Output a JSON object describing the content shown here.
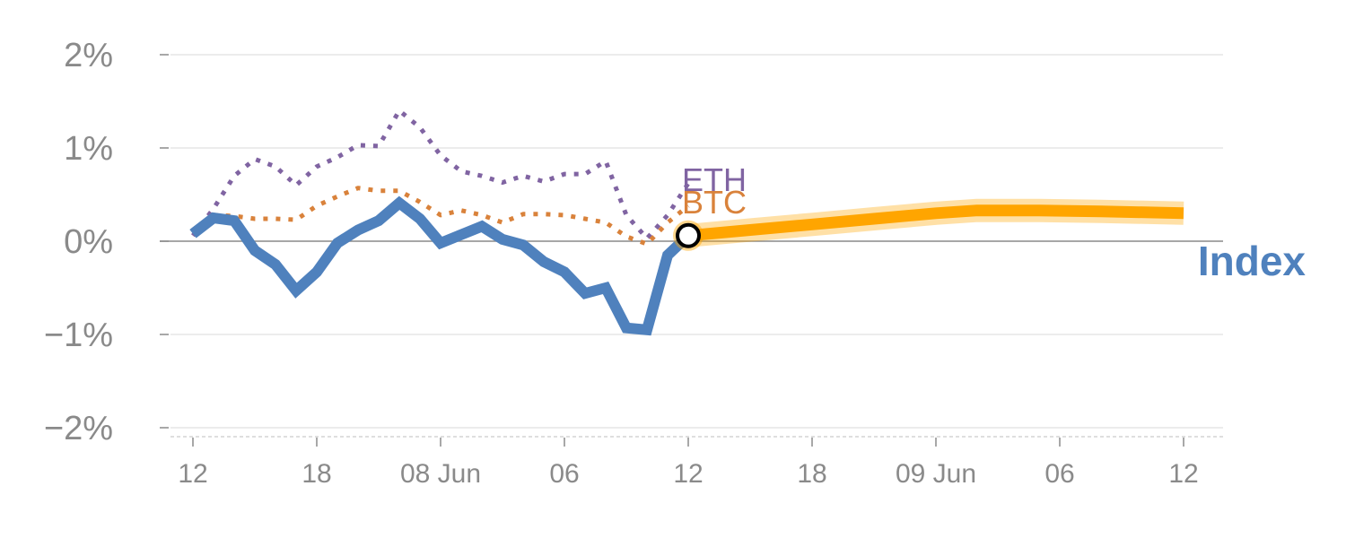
{
  "chart_data": {
    "type": "line",
    "y_unit": "%",
    "ylim": [
      -2,
      2
    ],
    "y_ticks": [
      {
        "value": 2,
        "label": "2%"
      },
      {
        "value": 1,
        "label": "1%"
      },
      {
        "value": 0,
        "label": "0%"
      },
      {
        "value": -1,
        "label": "−1%"
      },
      {
        "value": -2,
        "label": "−2%"
      }
    ],
    "x_ticks": [
      "12",
      "18",
      "08 Jun",
      "06",
      "12",
      "18",
      "09 Jun",
      "06",
      "12"
    ],
    "x_range": [
      0,
      48
    ],
    "grid": true,
    "colors": {
      "index": "#4f81bd",
      "btc": "#d9823b",
      "eth": "#8064a2",
      "projection": "#ffa500",
      "grid": "#e6e6e6",
      "zero": "#8a8a8a",
      "tick": "#8a8a8a"
    },
    "series": [
      {
        "name": "Index",
        "style": "solid",
        "x": [
          0,
          1,
          2,
          3,
          4,
          5,
          6,
          7,
          8,
          9,
          10,
          11,
          12,
          13,
          14,
          15,
          16,
          17,
          18,
          19,
          20,
          21,
          22,
          23,
          24
        ],
        "y": [
          0.08,
          0.25,
          0.22,
          -0.1,
          -0.25,
          -0.53,
          -0.33,
          -0.02,
          0.12,
          0.22,
          0.41,
          0.24,
          -0.02,
          0.07,
          0.16,
          0.02,
          -0.04,
          -0.22,
          -0.33,
          -0.56,
          -0.5,
          -0.93,
          -0.95,
          -0.15,
          0.06
        ]
      },
      {
        "name": "BTC",
        "style": "dotted",
        "x": [
          0,
          1,
          2,
          3,
          4,
          5,
          6,
          7,
          8,
          9,
          10,
          11,
          12,
          13,
          14,
          15,
          16,
          17,
          18,
          19,
          20,
          21,
          22,
          23,
          24
        ],
        "y": [
          0.12,
          0.28,
          0.27,
          0.24,
          0.24,
          0.23,
          0.38,
          0.48,
          0.57,
          0.54,
          0.54,
          0.42,
          0.28,
          0.33,
          0.28,
          0.2,
          0.29,
          0.29,
          0.28,
          0.24,
          0.2,
          0.05,
          -0.03,
          0.2,
          0.38
        ]
      },
      {
        "name": "ETH",
        "style": "dotted",
        "x": [
          0,
          1,
          2,
          3,
          4,
          5,
          6,
          7,
          8,
          9,
          10,
          11,
          12,
          13,
          14,
          15,
          16,
          17,
          18,
          19,
          20,
          21,
          22,
          23,
          24
        ],
        "y": [
          0.06,
          0.35,
          0.7,
          0.88,
          0.8,
          0.6,
          0.8,
          0.9,
          1.03,
          1.02,
          1.4,
          1.22,
          0.92,
          0.75,
          0.7,
          0.63,
          0.7,
          0.64,
          0.72,
          0.72,
          0.86,
          0.28,
          0.03,
          0.28,
          0.62
        ]
      },
      {
        "name": "",
        "style": "projection",
        "x": [
          24,
          27,
          30,
          33,
          36,
          38,
          41,
          44,
          48
        ],
        "y": [
          0.06,
          0.12,
          0.18,
          0.24,
          0.3,
          0.33,
          0.33,
          0.32,
          0.3
        ]
      }
    ],
    "highlight_point": {
      "x": 24,
      "y": 0.06
    }
  }
}
